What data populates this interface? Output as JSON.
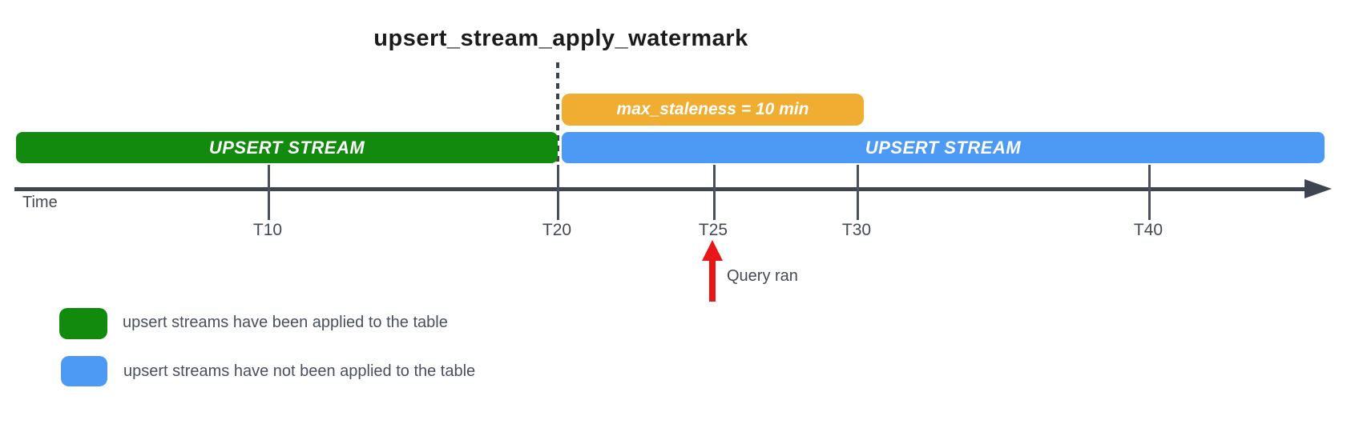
{
  "title": "upsert_stream_apply_watermark",
  "colors": {
    "applied_green": "#128a0e",
    "not_applied_blue": "#4d9af5",
    "staleness_orange": "#efad31",
    "query_arrow_red": "#e81616",
    "axis_slate": "#3e4550",
    "label_text": "#434a54",
    "bar_text": "#ffffff",
    "title_text": "#1b1b1b"
  },
  "bars": {
    "staleness": {
      "label": "max_staleness = 10 min"
    },
    "applied": {
      "label": "UPSERT STREAM"
    },
    "not_applied": {
      "label": "UPSERT STREAM"
    }
  },
  "axis": {
    "label": "Time",
    "ticks": [
      {
        "label": "T10"
      },
      {
        "label": "T20"
      },
      {
        "label": "T25"
      },
      {
        "label": "T30"
      },
      {
        "label": "T40"
      }
    ]
  },
  "annotations": {
    "query_ran": "Query ran"
  },
  "legend": [
    {
      "swatch_color": "#128a0e",
      "label": "upsert streams have been applied to the table"
    },
    {
      "swatch_color": "#4d9af5",
      "label": "upsert streams have not been applied to the table"
    }
  ]
}
